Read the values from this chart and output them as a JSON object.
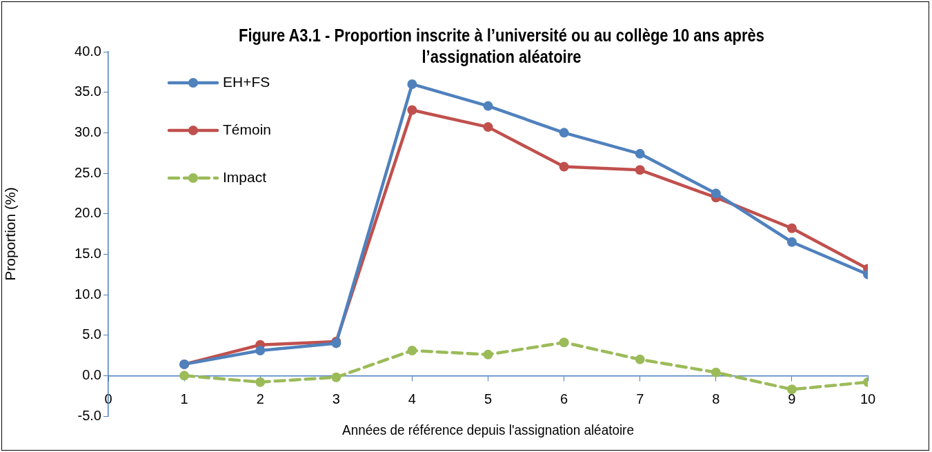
{
  "chart_data": {
    "type": "line",
    "title": "Figure A3.1 - Proportion inscrite à l’université ou au collège 10 ans après l’assignation aléatoire",
    "xlabel": "Années de référence depuis l'assignation aléatoire",
    "ylabel": "Proportion (%)",
    "x": [
      1,
      2,
      3,
      4,
      5,
      6,
      7,
      8,
      9,
      10
    ],
    "series": [
      {
        "name": "EH+FS",
        "color": "#4f81bd",
        "values": [
          1.4,
          3.1,
          4.0,
          36.0,
          33.3,
          30.0,
          27.4,
          22.5,
          16.5,
          12.5
        ]
      },
      {
        "name": "Témoin",
        "color": "#c0504d",
        "values": [
          1.4,
          3.8,
          4.2,
          32.8,
          30.7,
          25.8,
          25.4,
          22.0,
          18.2,
          13.2
        ]
      },
      {
        "name": "Impact",
        "color": "#9bbb59",
        "line_style": "dashed",
        "values": [
          0.0,
          -0.8,
          -0.2,
          3.1,
          2.6,
          4.1,
          2.0,
          0.4,
          -1.7,
          -0.8
        ]
      }
    ],
    "xlim": [
      0,
      10
    ],
    "xticks": [
      0,
      1,
      2,
      3,
      4,
      5,
      6,
      7,
      8,
      9,
      10
    ],
    "ylim": [
      -5,
      40
    ],
    "yticks": [
      {
        "value": -5,
        "label": "-5.0"
      },
      {
        "value": 0,
        "label": "0.0"
      },
      {
        "value": 5,
        "label": "5.0"
      },
      {
        "value": 10,
        "label": "10.0"
      },
      {
        "value": 15,
        "label": "15.0"
      },
      {
        "value": 20,
        "label": "20.0"
      },
      {
        "value": 25,
        "label": "25.0"
      },
      {
        "value": 30,
        "label": "30.0"
      },
      {
        "value": 35,
        "label": "35.0"
      },
      {
        "value": 40,
        "label": "40.0"
      }
    ],
    "grid": false,
    "legend": "top left",
    "marker": "circle",
    "line_style": "solid"
  }
}
